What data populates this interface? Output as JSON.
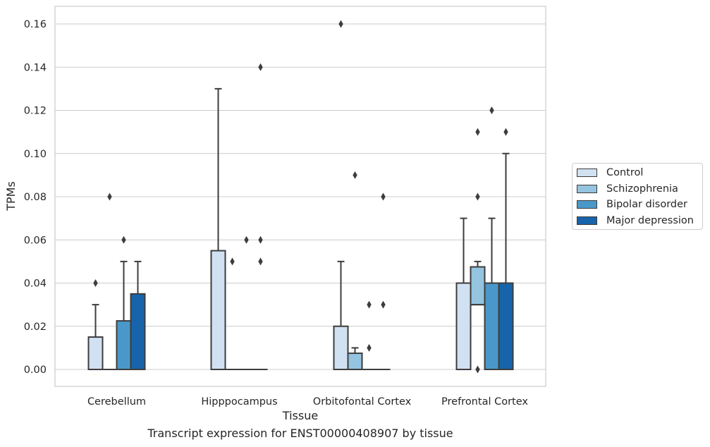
{
  "chart_data": {
    "type": "box",
    "title": "",
    "caption": "Transcript expression for ENST00000408907 by tissue",
    "xlabel": "Tissue",
    "ylabel": "TPMs",
    "ylim": [
      -0.008,
      0.168
    ],
    "yticks": [
      "0.00",
      "0.02",
      "0.04",
      "0.06",
      "0.08",
      "0.10",
      "0.12",
      "0.14",
      "0.16"
    ],
    "ytick_values": [
      0,
      0.02,
      0.04,
      0.06,
      0.08,
      0.1,
      0.12,
      0.14,
      0.16
    ],
    "grid": "horizontal",
    "legend_position": "right",
    "categories": [
      "Cerebellum",
      "Hipppocampus",
      "Orbitofontal Cortex",
      "Prefrontal Cortex"
    ],
    "series": [
      {
        "name": "Control",
        "color": "#d0e1f2",
        "boxes": [
          {
            "q1": 0,
            "median": 0,
            "q3": 0.015,
            "whisker_low": 0,
            "whisker_high": 0.03,
            "outliers": [
              0.04
            ]
          },
          {
            "q1": 0,
            "median": 0,
            "q3": 0.055,
            "whisker_low": 0,
            "whisker_high": 0.13,
            "outliers": []
          },
          {
            "q1": 0,
            "median": 0,
            "q3": 0.02,
            "whisker_low": 0,
            "whisker_high": 0.05,
            "outliers": [
              0.16
            ]
          },
          {
            "q1": 0,
            "median": 0,
            "q3": 0.04,
            "whisker_low": 0,
            "whisker_high": 0.07,
            "outliers": []
          }
        ]
      },
      {
        "name": "Schizophrenia",
        "color": "#94c4df",
        "boxes": [
          {
            "q1": 0,
            "median": 0,
            "q3": 0,
            "whisker_low": 0,
            "whisker_high": 0,
            "outliers": [
              0.08
            ]
          },
          {
            "q1": 0,
            "median": 0,
            "q3": 0,
            "whisker_low": 0,
            "whisker_high": 0,
            "outliers": [
              0.05
            ]
          },
          {
            "q1": 0,
            "median": 0,
            "q3": 0.0075,
            "whisker_low": 0,
            "whisker_high": 0.01,
            "outliers": [
              0.09
            ]
          },
          {
            "q1": 0.03,
            "median": 0.03,
            "q3": 0.0475,
            "whisker_low": 0.03,
            "whisker_high": 0.05,
            "outliers": [
              0.11,
              0.08,
              0
            ]
          }
        ]
      },
      {
        "name": "Bipolar disorder",
        "color": "#4a98c9",
        "boxes": [
          {
            "q1": 0,
            "median": 0,
            "q3": 0.0225,
            "whisker_low": 0,
            "whisker_high": 0.05,
            "outliers": [
              0.06
            ]
          },
          {
            "q1": 0,
            "median": 0,
            "q3": 0,
            "whisker_low": 0,
            "whisker_high": 0,
            "outliers": [
              0.06
            ]
          },
          {
            "q1": 0,
            "median": 0,
            "q3": 0,
            "whisker_low": 0,
            "whisker_high": 0,
            "outliers": [
              0.03,
              0.01
            ]
          },
          {
            "q1": 0,
            "median": 0,
            "q3": 0.04,
            "whisker_low": 0,
            "whisker_high": 0.07,
            "outliers": [
              0.12
            ]
          }
        ]
      },
      {
        "name": "Major depression",
        "color": "#1764ab",
        "boxes": [
          {
            "q1": 0,
            "median": 0,
            "q3": 0.035,
            "whisker_low": 0,
            "whisker_high": 0.05,
            "outliers": []
          },
          {
            "q1": 0,
            "median": 0,
            "q3": 0,
            "whisker_low": 0,
            "whisker_high": 0,
            "outliers": [
              0.14,
              0.06,
              0.05
            ]
          },
          {
            "q1": 0,
            "median": 0,
            "q3": 0,
            "whisker_low": 0,
            "whisker_high": 0,
            "outliers": [
              0.08,
              0.03
            ]
          },
          {
            "q1": 0,
            "median": 0,
            "q3": 0.04,
            "whisker_low": 0,
            "whisker_high": 0.1,
            "outliers": [
              0.11
            ]
          }
        ]
      }
    ]
  }
}
